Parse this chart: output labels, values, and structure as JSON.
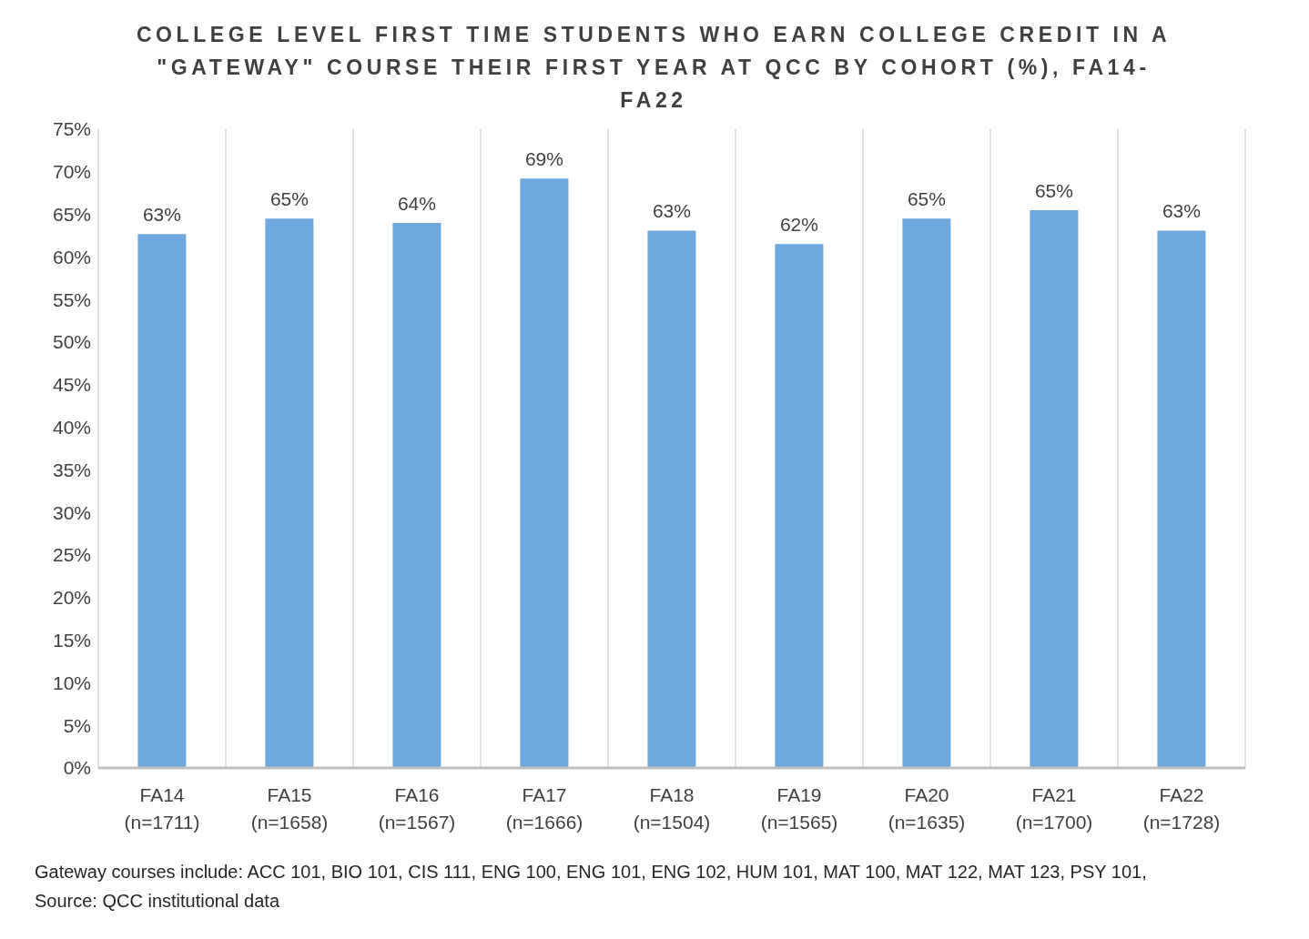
{
  "chart_data": {
    "type": "bar",
    "title": "COLLEGE LEVEL FIRST TIME STUDENTS WHO EARN COLLEGE CREDIT IN A \"GATEWAY\" COURSE THEIR FIRST YEAR AT QCC BY COHORT (%), FA14-FA22",
    "categories": [
      "FA14 (n=1711)",
      "FA15 (n=1658)",
      "FA16 (n=1567)",
      "FA17 (n=1666)",
      "FA18 (n=1504)",
      "FA19 (n=1565)",
      "FA20 (n=1635)",
      "FA21 (n=1700)",
      "FA22 (n=1728)"
    ],
    "values": [
      62.7,
      64.5,
      64,
      69.2,
      63.1,
      61.5,
      64.5,
      65.5,
      63.1
    ],
    "value_labels": [
      "63%",
      "65%",
      "64%",
      "69%",
      "63%",
      "62%",
      "65%",
      "65%",
      "63%"
    ],
    "color": "#6fa8dc",
    "ylim": [
      0,
      75
    ],
    "yticks": [
      {
        "value": 0,
        "label": "0%"
      },
      {
        "value": 5,
        "label": "5%"
      },
      {
        "value": 10,
        "label": "10%"
      },
      {
        "value": 15,
        "label": "15%"
      },
      {
        "value": 20,
        "label": "20%"
      },
      {
        "value": 25,
        "label": "25%"
      },
      {
        "value": 30,
        "label": "30%"
      },
      {
        "value": 35,
        "label": "35%"
      },
      {
        "value": 40,
        "label": "40%"
      },
      {
        "value": 45,
        "label": "45%"
      },
      {
        "value": 50,
        "label": "50%"
      },
      {
        "value": 55,
        "label": "55%"
      },
      {
        "value": 60,
        "label": "60%"
      },
      {
        "value": 65,
        "label": "65%"
      },
      {
        "value": 70,
        "label": "70%"
      },
      {
        "value": 75,
        "label": "75%"
      }
    ],
    "grid": "x",
    "annotations": [
      "Gateway courses include: ACC 101, BIO 101, CIS 111, ENG 100, ENG 101, ENG 102, HUM 101, MAT 100, MAT 122, MAT 123, PSY 101,",
      "Source: QCC institutional data"
    ]
  }
}
